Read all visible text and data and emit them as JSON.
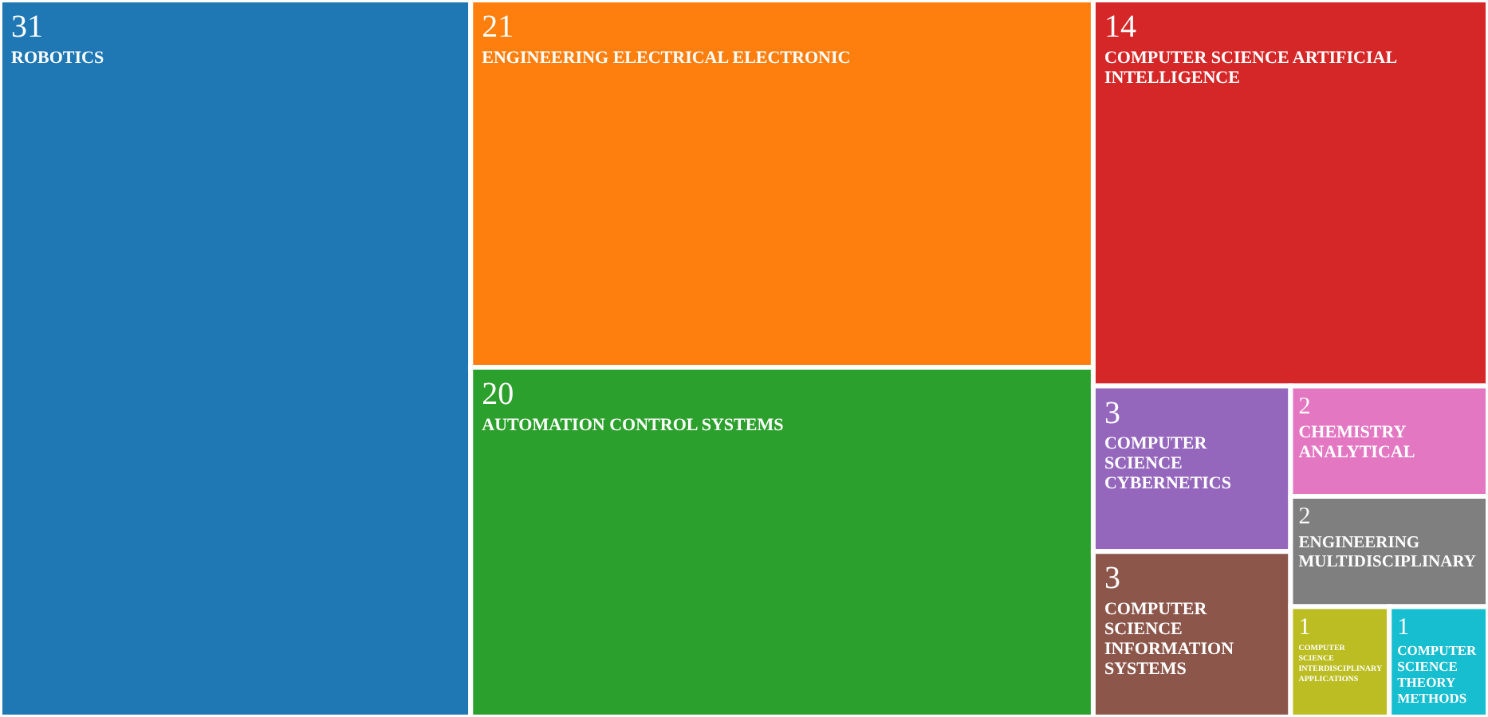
{
  "chart_data": {
    "type": "other",
    "data_labels": true,
    "categories": [
      "ROBOTICS",
      "ENGINEERING ELECTRICAL ELECTRONIC",
      "AUTOMATION CONTROL SYSTEMS",
      "COMPUTER SCIENCE ARTIFICIAL INTELLIGENCE",
      "COMPUTER SCIENCE CYBERNETICS",
      "COMPUTER SCIENCE INFORMATION SYSTEMS",
      "CHEMISTRY ANALYTICAL",
      "ENGINEERING MULTIDISCIPLINARY",
      "COMPUTER SCIENCE INTERDISCIPLINARY APPLICATIONS",
      "COMPUTER SCIENCE THEORY METHODS"
    ],
    "values": [
      31,
      21,
      20,
      14,
      3,
      3,
      2,
      2,
      1,
      1
    ],
    "colors": [
      "#1f77b4",
      "#ff7f0e",
      "#2ca02c",
      "#d62728",
      "#9467bd",
      "#8c564b",
      "#e377c2",
      "#7f7f7f",
      "#bcbd22",
      "#17becf"
    ]
  }
}
